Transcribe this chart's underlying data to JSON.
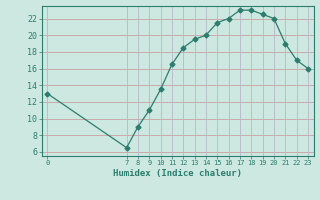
{
  "x": [
    0,
    7,
    8,
    9,
    10,
    11,
    12,
    13,
    14,
    15,
    16,
    17,
    18,
    19,
    20,
    21,
    22,
    23
  ],
  "y": [
    13,
    6.5,
    9,
    11,
    13.5,
    16.5,
    18.5,
    19.5,
    20,
    21.5,
    22,
    23,
    23,
    22.5,
    22,
    19,
    17,
    16
  ],
  "line_color": "#2d7d6e",
  "marker": "D",
  "marker_size": 2.5,
  "bg_color": "#cce8e0",
  "grid_color_h": "#c8a0a0",
  "grid_color_v": "#b8b8c8",
  "xlabel": "Humidex (Indice chaleur)",
  "xlabel_color": "#2d7d6e",
  "tick_color": "#2d7d6e",
  "xlim": [
    -0.5,
    23.5
  ],
  "ylim": [
    5.5,
    23.5
  ],
  "yticks": [
    6,
    8,
    10,
    12,
    14,
    16,
    18,
    20,
    22
  ],
  "xticks": [
    0,
    7,
    8,
    9,
    10,
    11,
    12,
    13,
    14,
    15,
    16,
    17,
    18,
    19,
    20,
    21,
    22,
    23
  ]
}
